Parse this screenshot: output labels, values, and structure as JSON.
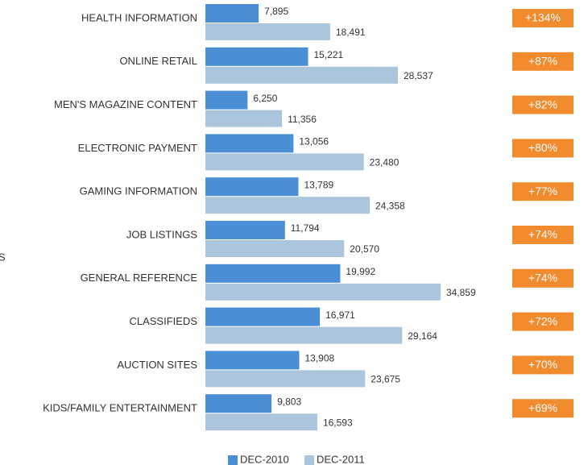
{
  "chart_data": {
    "type": "bar",
    "orientation": "horizontal",
    "side_label": "S",
    "categories": [
      "HEALTH INFORMATION",
      "ONLINE RETAIL",
      "MEN'S MAGAZINE CONTENT",
      "ELECTRONIC PAYMENT",
      "GAMING INFORMATION",
      "JOB LISTINGS",
      "GENERAL REFERENCE",
      "CLASSIFIEDS",
      "AUCTION SITES",
      "KIDS/FAMILY ENTERTAINMENT"
    ],
    "series": [
      {
        "name": "DEC-2010",
        "color": "#4a8fd6",
        "values": [
          7895,
          15221,
          6250,
          13056,
          13789,
          11794,
          19992,
          16971,
          13908,
          9803
        ],
        "value_labels": [
          "7,895",
          "15,221",
          "6,250",
          "13,056",
          "13,789",
          "11,794",
          "19,992",
          "16,971",
          "13,908",
          "9,803"
        ]
      },
      {
        "name": "DEC-2011",
        "color": "#abc6dc",
        "values": [
          18491,
          28537,
          11356,
          23480,
          24358,
          20570,
          34859,
          29164,
          23675,
          16593
        ],
        "value_labels": [
          "18,491",
          "28,537",
          "11,356",
          "23,480",
          "24,358",
          "20,570",
          "34,859",
          "29,164",
          "23,675",
          "16,593"
        ]
      }
    ],
    "changes": [
      134,
      87,
      82,
      80,
      77,
      74,
      74,
      72,
      70,
      69
    ],
    "change_labels": [
      "+134%",
      "+87%",
      "+82%",
      "+80%",
      "+77%",
      "+74%",
      "+74%",
      "+72%",
      "+70%",
      "+69%"
    ],
    "change_color": "#f28a2e",
    "xlim": [
      0,
      40000
    ],
    "legend": "bottom"
  }
}
